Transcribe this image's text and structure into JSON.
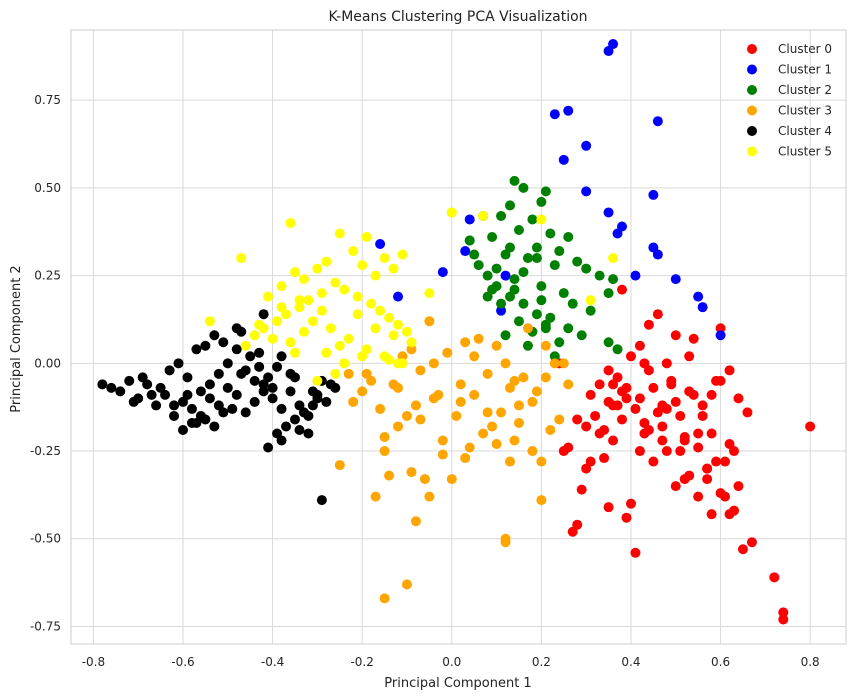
{
  "chart_data": {
    "type": "scatter",
    "title": "K-Means Clustering PCA Visualization",
    "xlabel": "Principal Component 1",
    "ylabel": "Principal Component 2",
    "xlim": [
      -0.85,
      0.88
    ],
    "ylim": [
      -0.8,
      0.95
    ],
    "x_ticks": [
      -0.8,
      -0.6,
      -0.4,
      -0.2,
      0.0,
      0.2,
      0.4,
      0.6,
      0.8
    ],
    "x_tick_labels": [
      "-0.8",
      "-0.6",
      "-0.4",
      "-0.2",
      "0.0",
      "0.2",
      "0.4",
      "0.6",
      "0.8"
    ],
    "y_ticks": [
      -0.75,
      -0.5,
      -0.25,
      0.0,
      0.25,
      0.5,
      0.75
    ],
    "y_tick_labels": [
      "-0.75",
      "-0.50",
      "-0.25",
      "0.00",
      "0.25",
      "0.50",
      "0.75"
    ],
    "grid": true,
    "legend": "top-right",
    "series": [
      {
        "name": "Cluster 0",
        "color": "#ff0000",
        "x": [
          0.8,
          0.74,
          0.74,
          0.72,
          0.67,
          0.64,
          0.63,
          0.62,
          0.61,
          0.6,
          0.59,
          0.58,
          0.57,
          0.56,
          0.55,
          0.54,
          0.53,
          0.52,
          0.51,
          0.5,
          0.49,
          0.48,
          0.47,
          0.46,
          0.45,
          0.44,
          0.43,
          0.42,
          0.41,
          0.4,
          0.39,
          0.38,
          0.37,
          0.36,
          0.35,
          0.34,
          0.33,
          0.32,
          0.31,
          0.3,
          0.29,
          0.28,
          0.27,
          0.26,
          0.25,
          0.24,
          0.5,
          0.52,
          0.55,
          0.58,
          0.6,
          0.62,
          0.45,
          0.42,
          0.38,
          0.35,
          0.3,
          0.47,
          0.53,
          0.56,
          0.6,
          0.63,
          0.65,
          0.43,
          0.48,
          0.41,
          0.36,
          0.33,
          0.39,
          0.44,
          0.5,
          0.54,
          0.58,
          0.61,
          0.49,
          0.46,
          0.52,
          0.57,
          0.4,
          0.37,
          0.34,
          0.31,
          0.28,
          0.64,
          0.66,
          0.55,
          0.51,
          0.47,
          0.43,
          0.39,
          0.35,
          0.62,
          0.59,
          0.57,
          0.53,
          0.48,
          0.44,
          0.42,
          0.38,
          0.36
        ],
        "y": [
          -0.18,
          -0.71,
          -0.73,
          -0.61,
          -0.51,
          -0.35,
          -0.42,
          -0.43,
          -0.38,
          -0.37,
          -0.28,
          -0.2,
          -0.3,
          -0.12,
          -0.24,
          -0.09,
          -0.32,
          -0.21,
          -0.15,
          -0.11,
          -0.05,
          -0.25,
          -0.18,
          -0.14,
          -0.07,
          -0.02,
          0.0,
          -0.1,
          -0.54,
          -0.4,
          -0.44,
          0.21,
          -0.12,
          -0.06,
          -0.41,
          -0.27,
          -0.2,
          -0.15,
          -0.09,
          -0.3,
          -0.36,
          -0.46,
          -0.48,
          -0.24,
          -0.25,
          0.0,
          0.08,
          -0.33,
          -0.38,
          -0.43,
          0.1,
          -0.02,
          -0.28,
          0.05,
          -0.08,
          -0.02,
          -0.18,
          -0.22,
          0.02,
          -0.15,
          -0.05,
          -0.25,
          -0.53,
          -0.2,
          0.0,
          -0.13,
          -0.22,
          -0.06,
          -0.1,
          0.11,
          -0.35,
          0.07,
          -0.09,
          -0.28,
          -0.06,
          0.14,
          -0.22,
          -0.33,
          0.02,
          -0.04,
          -0.19,
          -0.28,
          -0.16,
          -0.1,
          -0.14,
          -0.2,
          -0.25,
          -0.12,
          -0.17,
          -0.07,
          -0.11,
          -0.23,
          -0.05,
          -0.3,
          -0.08,
          -0.13,
          -0.19,
          -0.25,
          -0.16,
          -0.12
        ]
      },
      {
        "name": "Cluster 1",
        "color": "#0000ff",
        "x": [
          0.36,
          0.35,
          0.26,
          0.23,
          0.46,
          0.3,
          0.25,
          0.3,
          0.45,
          0.35,
          0.38,
          0.37,
          0.45,
          0.46,
          0.41,
          0.5,
          0.55,
          0.56,
          0.6,
          0.04,
          0.03,
          -0.02,
          -0.16,
          -0.12,
          0.11,
          0.12
        ],
        "y": [
          0.91,
          0.89,
          0.72,
          0.71,
          0.69,
          0.62,
          0.58,
          0.49,
          0.48,
          0.43,
          0.39,
          0.37,
          0.33,
          0.31,
          0.25,
          0.24,
          0.19,
          0.16,
          0.08,
          0.41,
          0.32,
          0.26,
          0.34,
          0.19,
          0.15,
          0.25
        ]
      },
      {
        "name": "Cluster 2",
        "color": "#008000",
        "x": [
          0.14,
          0.16,
          0.21,
          0.2,
          0.13,
          0.11,
          0.18,
          0.07,
          0.04,
          0.09,
          0.15,
          0.22,
          0.19,
          0.26,
          0.24,
          0.28,
          0.3,
          0.33,
          0.36,
          0.35,
          0.12,
          0.17,
          0.23,
          0.1,
          0.08,
          0.05,
          0.14,
          0.2,
          0.25,
          0.27,
          0.31,
          0.13,
          0.16,
          0.19,
          0.22,
          0.09,
          0.06,
          0.11,
          0.15,
          0.18,
          0.21,
          0.24,
          0.12,
          0.17,
          0.1,
          0.14,
          0.2,
          0.26,
          0.29,
          0.23,
          0.16,
          0.19,
          0.13,
          0.08,
          0.35,
          0.37,
          0.04,
          0.21
        ],
        "y": [
          0.52,
          0.5,
          0.49,
          0.46,
          0.45,
          0.42,
          0.41,
          0.42,
          0.35,
          0.36,
          0.38,
          0.37,
          0.33,
          0.36,
          0.32,
          0.29,
          0.27,
          0.25,
          0.24,
          0.2,
          0.31,
          0.3,
          0.28,
          0.27,
          0.25,
          0.31,
          0.24,
          0.22,
          0.2,
          0.17,
          0.15,
          0.19,
          0.17,
          0.14,
          0.13,
          0.21,
          0.28,
          0.17,
          0.12,
          0.09,
          0.1,
          0.06,
          0.08,
          0.05,
          0.22,
          0.21,
          0.18,
          0.1,
          0.08,
          0.02,
          0.26,
          0.3,
          0.33,
          0.19,
          0.06,
          0.04,
          0.35,
          0.11
        ]
      },
      {
        "name": "Cluster 3",
        "color": "#ffa500",
        "x": [
          0.0,
          -0.05,
          0.1,
          0.05,
          0.12,
          0.08,
          0.02,
          -0.03,
          -0.08,
          -0.1,
          -0.12,
          -0.15,
          -0.18,
          -0.2,
          -0.22,
          -0.25,
          -0.14,
          -0.06,
          0.14,
          0.18,
          0.2,
          0.22,
          0.24,
          0.19,
          0.16,
          0.15,
          0.13,
          0.11,
          0.09,
          0.07,
          0.04,
          0.01,
          -0.02,
          -0.04,
          -0.07,
          -0.09,
          -0.11,
          -0.13,
          -0.16,
          -0.19,
          0.06,
          0.03,
          -0.01,
          0.17,
          0.21,
          0.25,
          0.2,
          0.12,
          0.12,
          0.13,
          -0.15,
          -0.1,
          -0.08,
          -0.05,
          0.0,
          0.03,
          0.1,
          0.15,
          0.18,
          0.21,
          -0.17,
          -0.23,
          -0.12,
          -0.07,
          0.05,
          0.08,
          0.14,
          0.23,
          0.26,
          -0.04,
          0.02,
          -0.02,
          -0.09,
          -0.15
        ],
        "y": [
          0.43,
          0.12,
          0.05,
          0.02,
          0.0,
          -0.03,
          -0.06,
          -0.09,
          -0.12,
          -0.15,
          -0.18,
          -0.21,
          -0.05,
          -0.08,
          -0.11,
          -0.29,
          -0.32,
          -0.33,
          -0.22,
          -0.25,
          -0.28,
          -0.19,
          -0.16,
          -0.08,
          -0.04,
          -0.12,
          -0.07,
          -0.14,
          -0.18,
          -0.2,
          -0.24,
          -0.15,
          -0.26,
          -0.1,
          -0.02,
          0.04,
          0.02,
          -0.06,
          -0.13,
          -0.03,
          0.07,
          0.06,
          0.03,
          0.1,
          0.05,
          0.0,
          -0.39,
          -0.5,
          -0.51,
          -0.28,
          -0.67,
          -0.63,
          -0.45,
          -0.38,
          -0.33,
          -0.27,
          -0.23,
          -0.17,
          -0.11,
          -0.04,
          -0.38,
          -0.03,
          -0.07,
          -0.16,
          -0.09,
          -0.14,
          -0.05,
          0.0,
          -0.06,
          0.0,
          -0.11,
          -0.22,
          -0.31,
          -0.25
        ]
      },
      {
        "name": "Cluster 4",
        "color": "#000000",
        "x": [
          -0.78,
          -0.76,
          -0.74,
          -0.72,
          -0.7,
          -0.68,
          -0.66,
          -0.64,
          -0.62,
          -0.6,
          -0.58,
          -0.56,
          -0.54,
          -0.52,
          -0.5,
          -0.48,
          -0.46,
          -0.44,
          -0.42,
          -0.4,
          -0.38,
          -0.36,
          -0.34,
          -0.32,
          -0.3,
          -0.28,
          -0.26,
          -0.63,
          -0.61,
          -0.59,
          -0.57,
          -0.55,
          -0.53,
          -0.51,
          -0.49,
          -0.47,
          -0.45,
          -0.43,
          -0.41,
          -0.39,
          -0.37,
          -0.35,
          -0.33,
          -0.31,
          -0.29,
          -0.65,
          -0.67,
          -0.69,
          -0.71,
          -0.6,
          -0.58,
          -0.56,
          -0.54,
          -0.52,
          -0.5,
          -0.48,
          -0.46,
          -0.44,
          -0.42,
          -0.4,
          -0.38,
          -0.36,
          -0.34,
          -0.32,
          -0.3,
          -0.62,
          -0.59,
          -0.55,
          -0.51,
          -0.47,
          -0.43,
          -0.39,
          -0.35,
          -0.31,
          -0.27,
          -0.41,
          -0.38,
          -0.29,
          -0.42,
          -0.48,
          -0.53,
          -0.57
        ],
        "y": [
          -0.06,
          -0.07,
          -0.08,
          -0.05,
          -0.1,
          -0.06,
          -0.12,
          -0.09,
          -0.15,
          -0.11,
          -0.13,
          -0.08,
          -0.1,
          -0.12,
          -0.07,
          -0.09,
          -0.14,
          -0.11,
          -0.06,
          -0.1,
          -0.13,
          -0.08,
          -0.12,
          -0.15,
          -0.09,
          -0.11,
          -0.07,
          -0.02,
          0.0,
          -0.04,
          -0.17,
          -0.16,
          -0.18,
          -0.14,
          -0.13,
          -0.03,
          0.02,
          -0.01,
          -0.04,
          -0.2,
          -0.18,
          -0.16,
          -0.14,
          -0.12,
          -0.05,
          -0.07,
          -0.09,
          -0.04,
          -0.11,
          -0.19,
          -0.17,
          -0.15,
          -0.06,
          -0.03,
          0.0,
          0.04,
          -0.02,
          -0.05,
          -0.08,
          -0.07,
          0.02,
          -0.03,
          -0.19,
          -0.2,
          -0.1,
          -0.12,
          -0.09,
          0.05,
          0.06,
          0.09,
          0.03,
          -0.01,
          -0.04,
          -0.08,
          -0.06,
          -0.24,
          -0.22,
          -0.39,
          0.14,
          0.1,
          0.08,
          0.04
        ]
      },
      {
        "name": "Cluster 5",
        "color": "#ffff00",
        "x": [
          -0.36,
          -0.47,
          -0.25,
          -0.19,
          -0.11,
          -0.28,
          -0.3,
          -0.33,
          -0.35,
          -0.38,
          -0.41,
          -0.22,
          -0.2,
          -0.17,
          -0.15,
          -0.13,
          -0.26,
          -0.29,
          -0.32,
          -0.34,
          -0.37,
          -0.39,
          -0.42,
          -0.44,
          -0.24,
          -0.21,
          -0.18,
          -0.16,
          -0.14,
          -0.12,
          -0.1,
          -0.31,
          -0.27,
          -0.23,
          -0.25,
          -0.28,
          -0.33,
          -0.36,
          -0.4,
          -0.43,
          -0.46,
          -0.54,
          -0.19,
          -0.15,
          -0.11,
          -0.09,
          -0.13,
          -0.17,
          -0.21,
          -0.3,
          -0.26,
          -0.35,
          0.36,
          0.0,
          0.07,
          0.2,
          0.31,
          -0.05,
          -0.2,
          -0.24,
          -0.29,
          -0.34,
          -0.38,
          -0.14,
          -0.12
        ],
        "y": [
          0.4,
          0.3,
          0.37,
          0.36,
          0.31,
          0.29,
          0.27,
          0.24,
          0.26,
          0.22,
          0.19,
          0.32,
          0.28,
          0.25,
          0.3,
          0.27,
          0.23,
          0.2,
          0.18,
          0.16,
          0.14,
          0.12,
          0.1,
          0.08,
          0.21,
          0.19,
          0.17,
          0.15,
          0.13,
          0.11,
          0.09,
          0.12,
          0.1,
          0.07,
          0.05,
          0.03,
          0.09,
          0.06,
          0.07,
          0.11,
          0.05,
          0.12,
          0.04,
          0.02,
          0.0,
          0.06,
          0.08,
          0.1,
          0.14,
          -0.05,
          -0.03,
          0.03,
          0.3,
          0.43,
          0.42,
          0.41,
          0.18,
          0.2,
          0.02,
          0.0,
          0.15,
          0.18,
          0.16,
          0.01,
          0.0
        ]
      }
    ]
  }
}
